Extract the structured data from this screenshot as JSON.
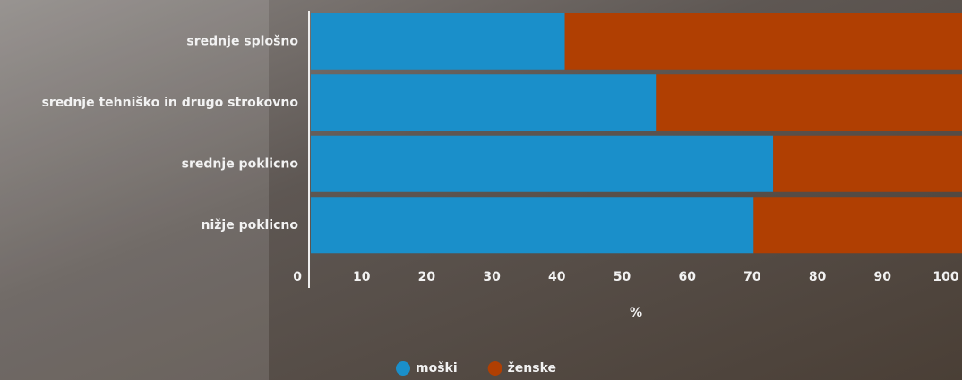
{
  "chart_data": {
    "type": "bar",
    "orientation": "horizontal",
    "stacked": true,
    "categories": [
      "srednje splošno",
      "srednje tehniško in drugo strokovno",
      "srednje poklicno",
      "nižje poklicno"
    ],
    "series": [
      {
        "name": "moški",
        "color": "#1a8fca",
        "values": [
          39,
          53,
          71,
          68
        ]
      },
      {
        "name": "ženske",
        "color": "#b03f02",
        "values": [
          61,
          47,
          29,
          32
        ]
      }
    ],
    "xlabel": "%",
    "xlim": [
      0,
      100
    ],
    "xticks": [
      0,
      10,
      20,
      30,
      40,
      50,
      60,
      70,
      80,
      90,
      100
    ],
    "legend": "bottom"
  }
}
